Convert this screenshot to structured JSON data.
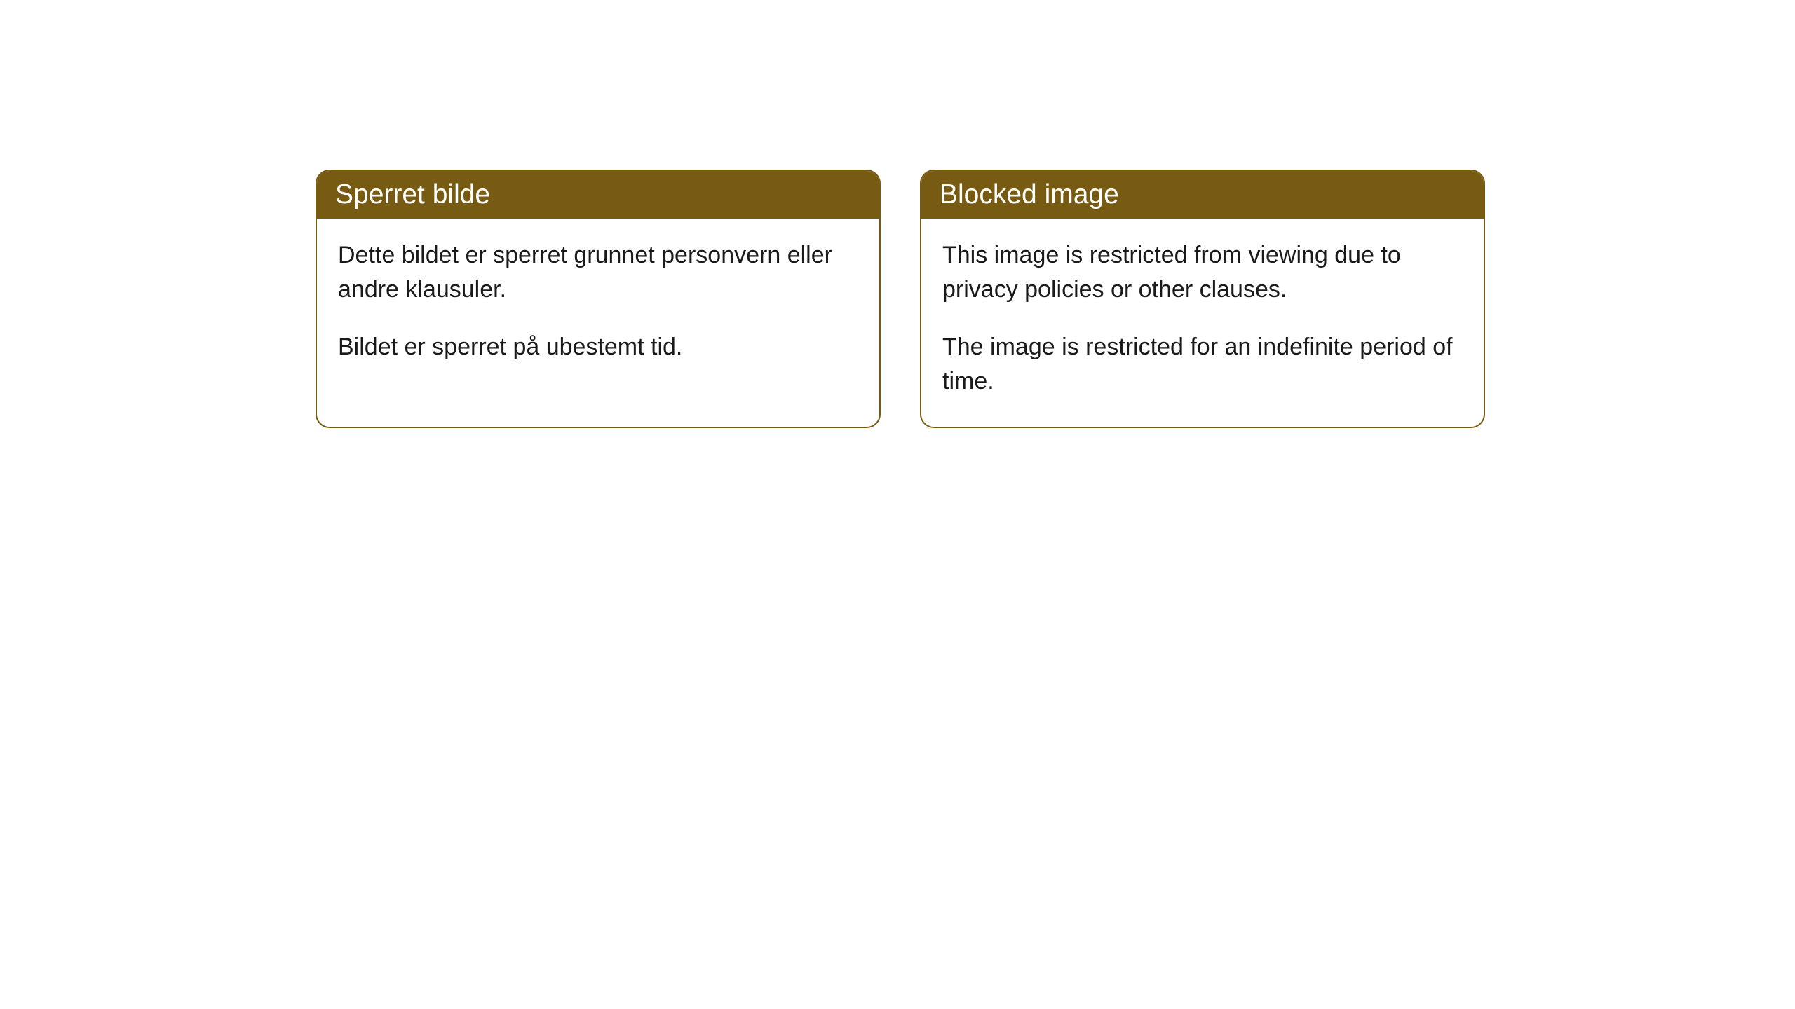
{
  "cards": [
    {
      "title": "Sperret bilde",
      "paragraph1": "Dette bildet er sperret grunnet personvern eller andre klausuler.",
      "paragraph2": "Bildet er sperret på ubestemt tid."
    },
    {
      "title": "Blocked image",
      "paragraph1": "This image is restricted from viewing due to privacy policies or other clauses.",
      "paragraph2": "The image is restricted for an indefinite period of time."
    }
  ],
  "styling": {
    "header_background": "#785b12",
    "header_text_color": "#ffffff",
    "border_color": "#785b12",
    "body_text_color": "#1a1a1a",
    "card_background": "#ffffff",
    "border_radius": 20,
    "header_fontsize": 39,
    "body_fontsize": 34
  }
}
